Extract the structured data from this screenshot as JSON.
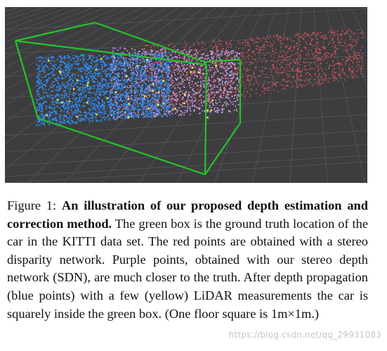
{
  "figure": {
    "label": "Figure 1:",
    "title": "An illustration of our proposed depth estimation and correction method.",
    "body": "The green box is the ground truth location of the car in the KITTI data set. The red points are obtained with a stereo disparity network. Purple points, obtained with our stereo depth network (SDN), are much closer to the truth. After depth propagation (blue points) with a few (yellow) LiDAR measurements the car is squarely inside the green box. (One floor square is 1m×1m.)",
    "colors": {
      "background": "#3d3d3f",
      "grid": "#56565a",
      "ground_truth_box": "#22c42a",
      "disparity_points": "#d8545a",
      "sdn_points": "#c79be6",
      "propagated_points": "#2f86e6",
      "lidar_points": "#f2e64a"
    }
  },
  "watermark": "https://blog.csdn.net/qq_29931083"
}
